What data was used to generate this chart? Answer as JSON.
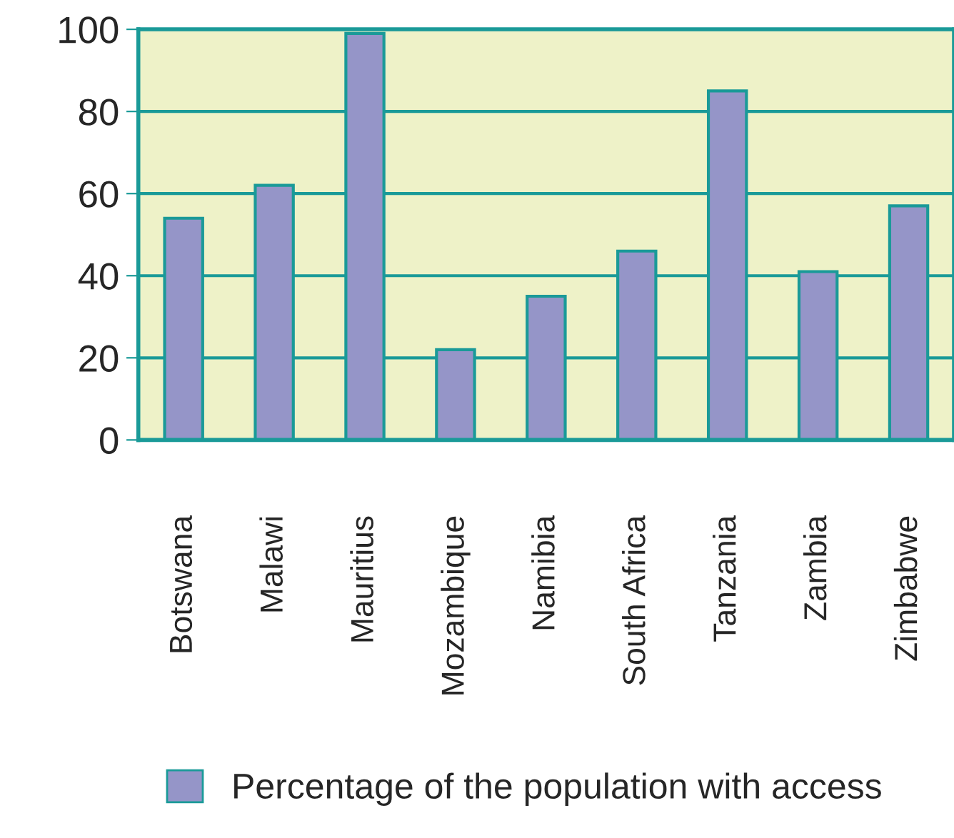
{
  "chart_data": {
    "type": "bar",
    "categories": [
      "Botswana",
      "Malawi",
      "Mauritius",
      "Mozambique",
      "Namibia",
      "South Africa",
      "Tanzania",
      "Zambia",
      "Zimbabwe"
    ],
    "series": [
      {
        "name": "Percentage of the population with access",
        "color": "#9595c8",
        "values": [
          54,
          62,
          99,
          22,
          35,
          46,
          85,
          41,
          57
        ]
      }
    ],
    "ylim": [
      0,
      100
    ],
    "yticks": [
      0,
      20,
      40,
      60,
      80,
      100
    ],
    "grid": "y",
    "legend": "bottom"
  }
}
